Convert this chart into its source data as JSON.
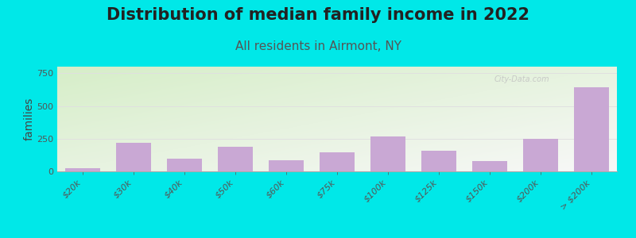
{
  "title": "Distribution of median family income in 2022",
  "subtitle": "All residents in Airmont, NY",
  "ylabel": "families",
  "categories": [
    "$20k",
    "$30k",
    "$40k",
    "$50k",
    "$60k",
    "$75k",
    "$100k",
    "$125k",
    "$150k",
    "$200k",
    "> $200k"
  ],
  "values": [
    25,
    220,
    100,
    185,
    85,
    145,
    265,
    155,
    80,
    250,
    645
  ],
  "bar_color": "#c9a8d4",
  "background_color": "#00e8e8",
  "gradient_color_top_left": "#d6eec8",
  "gradient_color_bottom_right": "#f5f5f5",
  "ylim": [
    0,
    800
  ],
  "yticks": [
    0,
    250,
    500,
    750
  ],
  "title_fontsize": 15,
  "subtitle_fontsize": 11,
  "ylabel_fontsize": 10,
  "tick_fontsize": 8,
  "title_color": "#222222",
  "subtitle_color": "#555555",
  "ylabel_color": "#444444",
  "tick_color": "#555555",
  "grid_color": "#e0e0e0",
  "watermark_text": "City-Data.com",
  "watermark_color": "#c0c0c0"
}
